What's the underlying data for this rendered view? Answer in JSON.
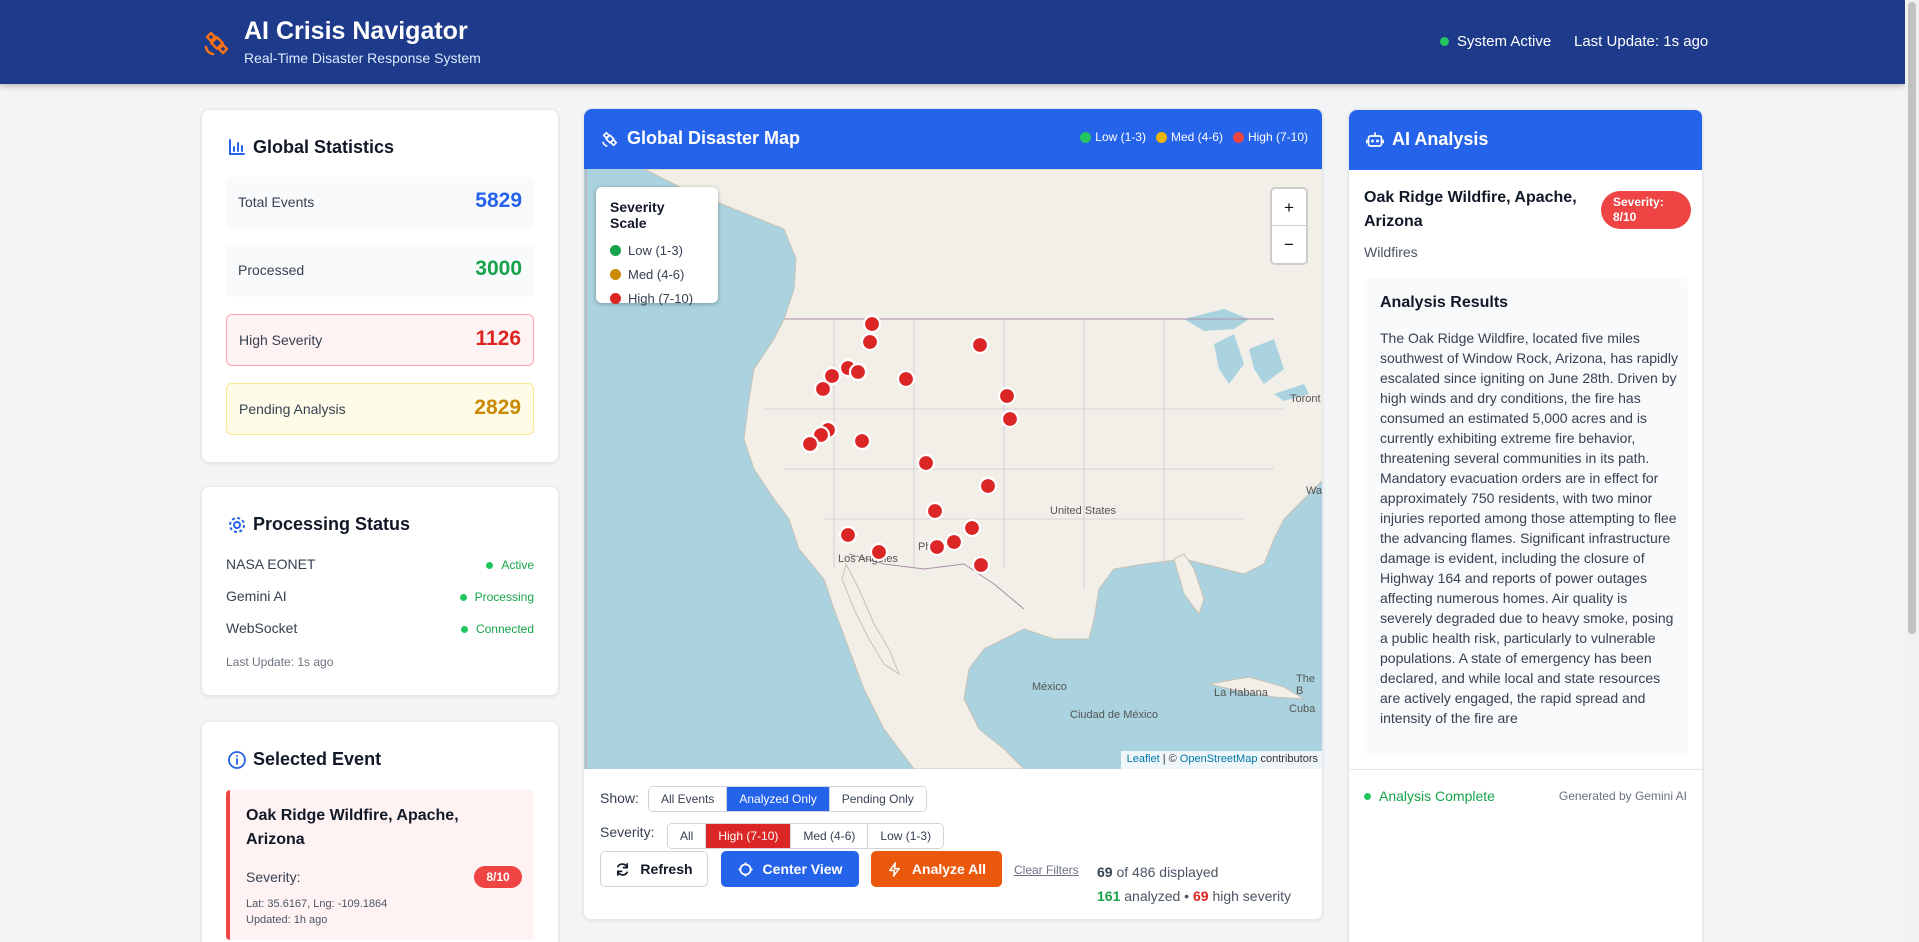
{
  "header": {
    "title": "AI Crisis Navigator",
    "subtitle": "Real-Time Disaster Response System",
    "system_status": "System Active",
    "last_update": "Last Update: 1s ago"
  },
  "stats": {
    "title": "Global Statistics",
    "items": [
      {
        "label": "Total Events",
        "value": "5829",
        "color": "#2563eb"
      },
      {
        "label": "Processed",
        "value": "3000",
        "color": "#16a34a"
      },
      {
        "label": "High Severity",
        "value": "1126",
        "color": "#dc2626"
      },
      {
        "label": "Pending Analysis",
        "value": "2829",
        "color": "#ca8a04"
      }
    ]
  },
  "processing": {
    "title": "Processing Status",
    "items": [
      {
        "label": "NASA EONET",
        "status": "Active"
      },
      {
        "label": "Gemini AI",
        "status": "Processing"
      },
      {
        "label": "WebSocket",
        "status": "Connected"
      }
    ],
    "last_update": "Last Update: 1s ago"
  },
  "selected_event": {
    "title": "Selected Event",
    "name": "Oak Ridge Wildfire, Apache, Arizona",
    "severity_label": "Severity:",
    "severity": "8/10",
    "coords": "Lat: 35.6167, Lng: -109.1864",
    "updated": "Updated: 1h ago"
  },
  "map": {
    "title": "Global Disaster Map",
    "legend": [
      {
        "label": "Low (1-3)",
        "color": "#22c55e"
      },
      {
        "label": "Med (4-6)",
        "color": "#eab308"
      },
      {
        "label": "High (7-10)",
        "color": "#ef4444"
      }
    ],
    "scale_title": "Severity Scale",
    "scale": [
      {
        "label": "Low (1-3)",
        "color": "#16a34a"
      },
      {
        "label": "Med (4-6)",
        "color": "#ca8a04"
      },
      {
        "label": "High (7-10)",
        "color": "#dc2626"
      }
    ],
    "zoom_in": "+",
    "zoom_out": "−",
    "attribution_link1": "Leaflet",
    "attribution_mid": "| ©",
    "attribution_link2": "OpenStreetMap",
    "attribution_end": "contributors",
    "places": [
      "United States",
      "Los Angeles",
      "México",
      "Ciudad de México",
      "La Habana",
      "Cuba",
      "Toront",
      "Wa",
      "The B",
      "Ph"
    ],
    "marker_color": "#dc2626"
  },
  "filters": {
    "show_label": "Show:",
    "show_options": [
      "All Events",
      "Analyzed Only",
      "Pending Only"
    ],
    "show_selected": "Analyzed Only",
    "severity_label": "Severity:",
    "severity_options": [
      "All",
      "High (7-10)",
      "Med (4-6)",
      "Low (1-3)"
    ],
    "severity_selected": "High (7-10)"
  },
  "actions": {
    "refresh": "Refresh",
    "center": "Center View",
    "analyze": "Analyze All",
    "clear": "Clear Filters"
  },
  "counts": {
    "displayed": "69",
    "of_total": "of 486 displayed",
    "analyzed": "161",
    "analyzed_label": "analyzed •",
    "high": "69",
    "high_label": "high severity"
  },
  "ai": {
    "title": "AI Analysis",
    "event_name": "Oak Ridge Wildfire, Apache, Arizona",
    "severity_badge": "Severity: 8/10",
    "category": "Wildfires",
    "results_title": "Analysis Results",
    "results_text": "The Oak Ridge Wildfire, located five miles southwest of Window Rock, Arizona, has rapidly escalated since igniting on June 28th. Driven by high winds and dry conditions, the fire has consumed an estimated 5,000 acres and is currently exhibiting extreme fire behavior, threatening several communities in its path. Mandatory evacuation orders are in effect for approximately 750 residents, with two minor injuries reported among those attempting to flee the advancing flames. Significant infrastructure damage is evident, including the closure of Highway 164 and reports of power outages affecting numerous homes. Air quality is severely degraded due to heavy smoke, posing a public health risk, particularly to vulnerable populations. A state of emergency has been declared, and while local and state resources are actively engaged, the rapid spread and intensity of the fire are",
    "status": "Analysis Complete",
    "generated_by": "Generated by Gemini AI"
  }
}
